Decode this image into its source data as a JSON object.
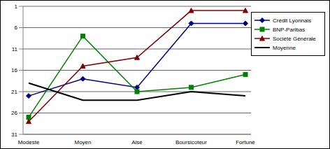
{
  "chart_data": {
    "type": "line",
    "categories": [
      "Modeste",
      "Moyen",
      "Aisé",
      "Boursicoteur",
      "Fortuné"
    ],
    "series": [
      {
        "name": "Crédit Lyonnais",
        "color": "#000080",
        "marker": "diamond",
        "values": [
          22,
          18,
          20,
          5,
          5
        ]
      },
      {
        "name": "BNP-Paribas",
        "color": "#008000",
        "marker": "square",
        "values": [
          27,
          8,
          21,
          20,
          17
        ]
      },
      {
        "name": "Société Générale",
        "color": "#800000",
        "marker": "triangle",
        "values": [
          28,
          15,
          13,
          2,
          2
        ]
      },
      {
        "name": "Moyenne",
        "color": "#000000",
        "marker": "none",
        "values": [
          19,
          23,
          23,
          21,
          22
        ]
      }
    ],
    "ylim": [
      31,
      1
    ],
    "yticks": [
      1,
      6,
      11,
      16,
      21,
      26,
      31
    ],
    "grid": true,
    "legend": "right"
  }
}
